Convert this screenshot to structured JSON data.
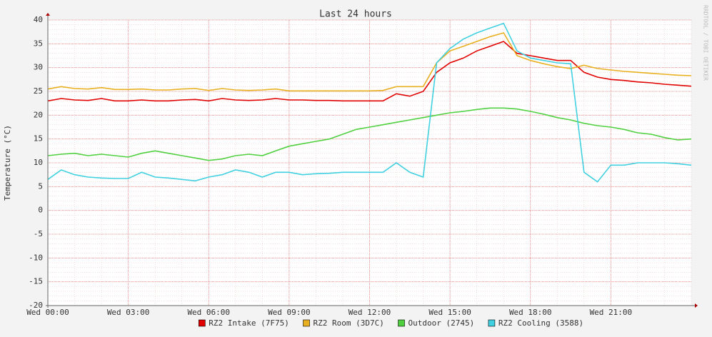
{
  "chart_data": {
    "type": "line",
    "title": "Last 24 hours",
    "y_label": "Temperature (°C)",
    "watermark": "RRDTOOL / TOBI OETIKER",
    "x": [
      0,
      0.5,
      1,
      1.5,
      2,
      2.5,
      3,
      3.5,
      4,
      4.5,
      5,
      5.5,
      6,
      6.5,
      7,
      7.5,
      8,
      8.5,
      9,
      9.5,
      10,
      10.5,
      11,
      11.5,
      12,
      12.5,
      13,
      13.5,
      14,
      14.5,
      15,
      15.5,
      16,
      16.5,
      17,
      17.5,
      18,
      18.5,
      19,
      19.5,
      20,
      20.5,
      21,
      21.5,
      22,
      22.5,
      23,
      23.5,
      24
    ],
    "xlim": [
      0,
      24
    ],
    "xticks": [
      {
        "value": 0,
        "label": "Wed 00:00"
      },
      {
        "value": 3,
        "label": "Wed 03:00"
      },
      {
        "value": 6,
        "label": "Wed 06:00"
      },
      {
        "value": 9,
        "label": "Wed 09:00"
      },
      {
        "value": 12,
        "label": "Wed 12:00"
      },
      {
        "value": 15,
        "label": "Wed 15:00"
      },
      {
        "value": 18,
        "label": "Wed 18:00"
      },
      {
        "value": 21,
        "label": "Wed 21:00"
      }
    ],
    "ylim": [
      -20,
      40
    ],
    "yticks": [
      -20,
      -15,
      -10,
      -5,
      0,
      5,
      10,
      15,
      20,
      25,
      30,
      35,
      40
    ],
    "grid": true,
    "legend": "bottom",
    "series": [
      {
        "name": "RZ2 Intake (7F75)",
        "color": "#e00000",
        "values": [
          23,
          23.5,
          23.2,
          23.1,
          23.5,
          23,
          23,
          23.2,
          23,
          23,
          23.2,
          23.3,
          23,
          23.5,
          23.2,
          23.1,
          23.2,
          23.5,
          23.2,
          23.2,
          23.1,
          23.1,
          23,
          23,
          23,
          23,
          24.5,
          24,
          25,
          29,
          31,
          32,
          33.5,
          34.5,
          35.5,
          33,
          32.5,
          32,
          31.5,
          31.5,
          29,
          28,
          27.5,
          27.3,
          27,
          26.8,
          26.5,
          26.3,
          26.1
        ]
      },
      {
        "name": "RZ2 Room (3D7C)",
        "color": "#e8b020",
        "values": [
          25.5,
          26,
          25.6,
          25.5,
          25.8,
          25.4,
          25.4,
          25.5,
          25.3,
          25.3,
          25.5,
          25.6,
          25.2,
          25.6,
          25.3,
          25.2,
          25.3,
          25.5,
          25.1,
          25.1,
          25.1,
          25.1,
          25.1,
          25.1,
          25.1,
          25.2,
          26,
          26,
          26,
          31,
          33.5,
          34.5,
          35.5,
          36.5,
          37.3,
          32.5,
          31.5,
          30.8,
          30.2,
          29.8,
          30.5,
          29.8,
          29.5,
          29.2,
          29,
          28.8,
          28.6,
          28.4,
          28.3
        ]
      },
      {
        "name": "Outdoor (2745)",
        "color": "#50d040",
        "values": [
          11.5,
          11.8,
          12,
          11.5,
          11.8,
          11.5,
          11.2,
          12,
          12.5,
          12,
          11.5,
          11,
          10.5,
          10.8,
          11.5,
          11.8,
          11.5,
          12.5,
          13.5,
          14,
          14.5,
          15,
          16,
          17,
          17.5,
          18,
          18.5,
          19,
          19.5,
          20,
          20.5,
          20.8,
          21.2,
          21.5,
          21.5,
          21.3,
          20.8,
          20.2,
          19.5,
          19,
          18.3,
          17.8,
          17.5,
          17,
          16.3,
          16,
          15.3,
          14.8,
          15
        ]
      },
      {
        "name": "RZ2 Cooling (3588)",
        "color": "#40d0e0",
        "values": [
          6.5,
          8.5,
          7.5,
          7,
          6.8,
          6.7,
          6.7,
          8,
          7,
          6.8,
          6.5,
          6.2,
          7,
          7.5,
          8.5,
          8,
          7,
          8,
          8,
          7.5,
          7.7,
          7.8,
          8,
          8,
          8,
          8,
          10,
          8,
          7,
          31,
          34,
          36,
          37.3,
          38.3,
          39.3,
          33.5,
          32,
          31.5,
          31,
          30.8,
          8,
          6,
          9.5,
          9.5,
          10,
          10,
          10,
          9.8,
          9.5
        ]
      }
    ]
  }
}
